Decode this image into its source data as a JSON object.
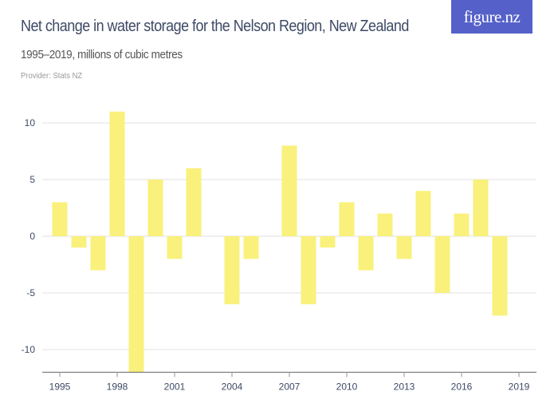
{
  "header": {
    "title": "Net change in water storage for the Nelson Region, New Zealand",
    "subtitle": "1995–2019, millions of cubic metres",
    "provider": "Provider: Stats NZ",
    "logo": "figure.nz",
    "logo_color": "#5561c9"
  },
  "chart_data": {
    "type": "bar",
    "title": "Net change in water storage for the Nelson Region, New Zealand",
    "subtitle": "1995–2019, millions of cubic metres",
    "xlabel": "",
    "ylabel": "",
    "x": [
      1995,
      1996,
      1997,
      1998,
      1999,
      2000,
      2001,
      2002,
      2003,
      2004,
      2005,
      2006,
      2007,
      2008,
      2009,
      2010,
      2011,
      2012,
      2013,
      2014,
      2015,
      2016,
      2017,
      2018,
      2019
    ],
    "values": [
      3,
      -1,
      -3,
      11,
      -12,
      5,
      -2,
      6,
      0,
      -6,
      -2,
      0,
      8,
      -6,
      -1,
      3,
      -3,
      2,
      -2,
      4,
      -5,
      2,
      5,
      -7,
      0
    ],
    "ylim": [
      -12,
      12
    ],
    "yticks": [
      -10,
      -5,
      0,
      5,
      10
    ],
    "ytick_labels": [
      "-10",
      "-5",
      "0",
      "5",
      "10"
    ],
    "xticks": [
      1995,
      1998,
      2001,
      2004,
      2007,
      2010,
      2013,
      2016,
      2019
    ],
    "xtick_labels": [
      "1995",
      "1998",
      "2001",
      "2004",
      "2007",
      "2010",
      "2013",
      "2016",
      "2019"
    ],
    "bar_color": "#f9f17b",
    "grid": true,
    "legend": "none"
  }
}
